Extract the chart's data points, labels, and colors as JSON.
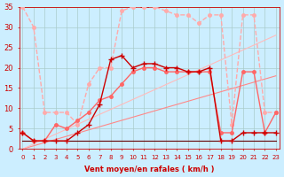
{
  "xlabel": "Vent moyen/en rafales ( km/h )",
  "background_color": "#cceeff",
  "grid_color": "#aacccc",
  "xmin": 0,
  "xmax": 23,
  "ymin": 0,
  "ymax": 35,
  "series": [
    {
      "x": [
        0,
        1,
        2,
        3,
        4,
        5,
        6,
        7,
        8,
        9,
        10,
        11,
        12,
        13,
        14,
        15,
        16,
        17,
        18,
        19,
        20,
        21,
        22,
        23
      ],
      "y": [
        35,
        30,
        9,
        9,
        9,
        6,
        16,
        20,
        20,
        34,
        35,
        35,
        35,
        34,
        33,
        33,
        31,
        33,
        33,
        6,
        33,
        33,
        9,
        9
      ],
      "color": "#ffaaaa",
      "marker": "o",
      "markersize": 2.5,
      "linewidth": 1.0,
      "linestyle": "--"
    },
    {
      "x": [
        0,
        1,
        2,
        3,
        4,
        5,
        6,
        7,
        8,
        9,
        10,
        11,
        12,
        13,
        14,
        15,
        16,
        17,
        18,
        19,
        20,
        21,
        22,
        23
      ],
      "y": [
        4,
        2,
        2,
        6,
        5,
        7,
        9,
        12,
        13,
        16,
        19,
        20,
        20,
        19,
        19,
        19,
        19,
        19,
        4,
        4,
        19,
        19,
        4,
        9
      ],
      "color": "#ff6666",
      "marker": "o",
      "markersize": 2.5,
      "linewidth": 1.0,
      "linestyle": "-"
    },
    {
      "x": [
        0,
        1,
        2,
        3,
        4,
        5,
        6,
        7,
        8,
        9,
        10,
        11,
        12,
        13,
        14,
        15,
        16,
        17,
        18,
        19,
        20,
        21,
        22,
        23
      ],
      "y": [
        4,
        2,
        2,
        2,
        2,
        4,
        6,
        11,
        22,
        23,
        20,
        21,
        21,
        20,
        20,
        19,
        19,
        20,
        2,
        2,
        4,
        4,
        4,
        4
      ],
      "color": "#cc0000",
      "marker": "+",
      "markersize": 4,
      "linewidth": 1.0,
      "linestyle": "-"
    },
    {
      "x": [
        0,
        1,
        2,
        3,
        4,
        5,
        6,
        7,
        8,
        9,
        10,
        11,
        12,
        13,
        14,
        15,
        16,
        17,
        18,
        19,
        20,
        21,
        22,
        23
      ],
      "y": [
        2,
        2,
        2,
        2,
        2,
        2,
        2,
        2,
        2,
        2,
        2,
        2,
        2,
        2,
        2,
        2,
        2,
        2,
        2,
        2,
        2,
        2,
        2,
        2
      ],
      "color": "#660000",
      "marker": null,
      "markersize": 0,
      "linewidth": 0.8,
      "linestyle": "-"
    },
    {
      "x": [
        0,
        23
      ],
      "y": [
        0,
        18
      ],
      "color": "#ff8888",
      "marker": null,
      "markersize": 0,
      "linewidth": 0.8,
      "linestyle": "-"
    },
    {
      "x": [
        0,
        23
      ],
      "y": [
        0,
        28
      ],
      "color": "#ffbbbb",
      "marker": null,
      "markersize": 0,
      "linewidth": 0.8,
      "linestyle": "-"
    }
  ],
  "bottom_labels": [
    "0",
    "1",
    "2",
    "3",
    "4",
    "5",
    "6",
    "7",
    "8",
    "9",
    "10",
    "11",
    "12",
    "13",
    "14",
    "15",
    "16",
    "17",
    "18",
    "19",
    "20",
    "21",
    "22",
    "23"
  ],
  "yticks": [
    0,
    5,
    10,
    15,
    20,
    25,
    30,
    35
  ],
  "tick_fontsize": 5,
  "xlabel_fontsize": 6
}
